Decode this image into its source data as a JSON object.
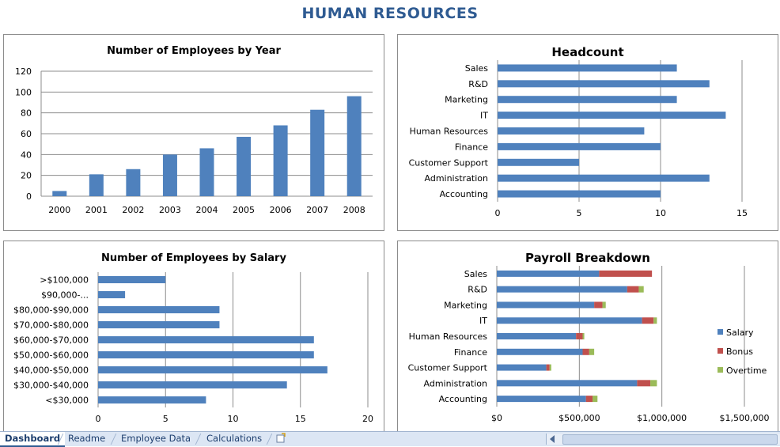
{
  "page": {
    "title": "HUMAN RESOURCES"
  },
  "colors": {
    "salary": "#4f81bd",
    "bonus": "#c0504d",
    "overtime": "#9bbb59",
    "title": "#2f5b92"
  },
  "tabs": [
    {
      "label": "Dashboard",
      "active": true
    },
    {
      "label": "Readme",
      "active": false
    },
    {
      "label": "Employee Data",
      "active": false
    },
    {
      "label": "Calculations",
      "active": false
    }
  ],
  "chart_data": [
    {
      "type": "bar",
      "title": "Number of Employees by Year",
      "categories": [
        "2000",
        "2001",
        "2002",
        "2003",
        "2004",
        "2005",
        "2006",
        "2007",
        "2008"
      ],
      "values": [
        5,
        21,
        26,
        40,
        46,
        57,
        68,
        83,
        96
      ],
      "ylim": [
        0,
        120
      ],
      "yticks": [
        0,
        20,
        40,
        60,
        80,
        100,
        120
      ],
      "grid": true
    },
    {
      "type": "bar",
      "orientation": "horizontal",
      "title": "Headcount",
      "categories": [
        "Sales",
        "R&D",
        "Marketing",
        "IT",
        "Human Resources",
        "Finance",
        "Customer Support",
        "Administration",
        "Accounting"
      ],
      "values": [
        11,
        13,
        11,
        14,
        9,
        10,
        5,
        13,
        10
      ],
      "xlim": [
        0,
        15
      ],
      "xticks": [
        0,
        5,
        10,
        15
      ],
      "grid": true
    },
    {
      "type": "bar",
      "orientation": "horizontal",
      "title": "Number of Employees by Salary",
      "categories": [
        ">$100,000",
        "$90,000-...",
        "$80,000-$90,000",
        "$70,000-$80,000",
        "$60,000-$70,000",
        "$50,000-$60,000",
        "$40,000-$50,000",
        "$30,000-$40,000",
        "<$30,000"
      ],
      "values": [
        5,
        2,
        9,
        9,
        16,
        16,
        17,
        14,
        8
      ],
      "xlim": [
        0,
        20
      ],
      "xticks": [
        0,
        5,
        10,
        15,
        20
      ],
      "grid": true
    },
    {
      "type": "bar",
      "orientation": "horizontal",
      "stacked": true,
      "title": "Payroll Breakdown",
      "categories": [
        "Sales",
        "R&D",
        "Marketing",
        "IT",
        "Human Resources",
        "Finance",
        "Customer Support",
        "Administration",
        "Accounting"
      ],
      "series": [
        {
          "name": "Salary",
          "values": [
            620000,
            790000,
            590000,
            880000,
            480000,
            520000,
            300000,
            850000,
            540000
          ]
        },
        {
          "name": "Bonus",
          "values": [
            320000,
            70000,
            50000,
            70000,
            40000,
            40000,
            20000,
            80000,
            40000
          ]
        },
        {
          "name": "Overtime",
          "values": [
            0,
            30000,
            20000,
            20000,
            10000,
            30000,
            10000,
            40000,
            30000
          ]
        }
      ],
      "xlim": [
        0,
        1500000
      ],
      "xticks": [
        "$0",
        "$500,000",
        "$1,000,000",
        "$1,500,000"
      ],
      "legend": "right",
      "grid": true
    }
  ]
}
